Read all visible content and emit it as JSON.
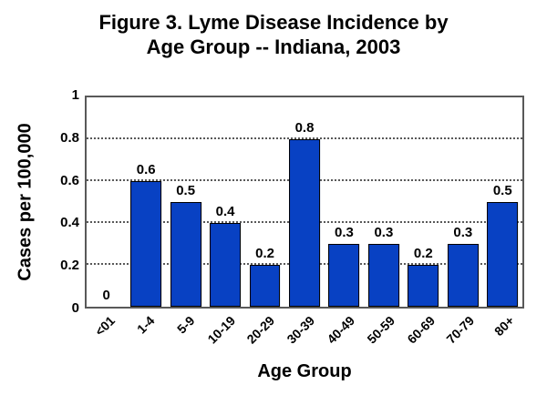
{
  "title": {
    "line1": "Figure 3. Lyme Disease Incidence by",
    "line2": "Age Group -- Indiana, 2003"
  },
  "chart_data": {
    "type": "bar",
    "title": "Figure 3. Lyme Disease Incidence by Age Group -- Indiana, 2003",
    "categories": [
      "<01",
      "1-4",
      "5-9",
      "10-19",
      "20-29",
      "30-39",
      "40-49",
      "50-59",
      "60-69",
      "70-79",
      "80+"
    ],
    "values": [
      0,
      0.6,
      0.5,
      0.4,
      0.2,
      0.8,
      0.3,
      0.3,
      0.2,
      0.3,
      0.5
    ],
    "data_labels": [
      "0",
      "0.6",
      "0.5",
      "0.4",
      "0.2",
      "0.8",
      "0.3",
      "0.3",
      "0.2",
      "0.3",
      "0.5"
    ],
    "xlabel": "Age Group",
    "ylabel": "Cases per 100,000",
    "ylim": [
      0,
      1
    ],
    "ytick_values": [
      0,
      0.2,
      0.4,
      0.6,
      0.8,
      1
    ],
    "ytick_labels": [
      "0",
      "0.2",
      "0.4",
      "0.6",
      "0.8",
      "1"
    ],
    "grid": "horizontal-dotted",
    "legend": "none",
    "colors": {
      "bar_fill": "#0841c3",
      "bar_border": "#000000",
      "plot_border": "#595959",
      "gridline": "#595959",
      "text": "#000000",
      "background": "#ffffff"
    }
  }
}
